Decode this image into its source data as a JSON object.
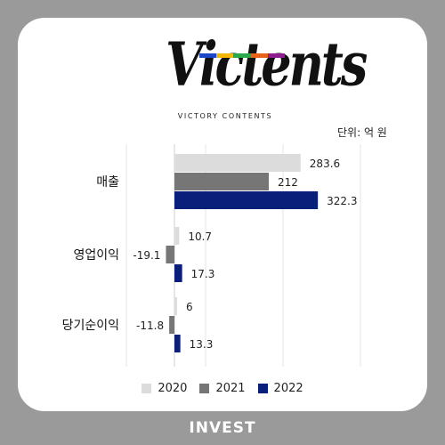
{
  "logo": {
    "word": "Victents",
    "subtitle": "VICTORY CONTENTS",
    "bar_colors": [
      "#1b46c8",
      "#f2b705",
      "#2aa84a",
      "#e8621a",
      "#8e1e8e"
    ]
  },
  "unit_label": "단위: 억 원",
  "chart_data": {
    "type": "bar",
    "orientation": "horizontal",
    "categories": [
      "매출",
      "영업이익",
      "당기순이익"
    ],
    "series": [
      {
        "name": "2020",
        "color": "#dcdcdc",
        "values": [
          283.6,
          10.7,
          6
        ]
      },
      {
        "name": "2021",
        "color": "#767676",
        "values": [
          212,
          -19.1,
          -11.8
        ]
      },
      {
        "name": "2022",
        "color": "#0a1f7a",
        "values": [
          322.3,
          17.3,
          13.3
        ]
      }
    ],
    "value_labels": [
      [
        "283.6",
        "10.7",
        "6"
      ],
      [
        "212",
        "-19.1",
        "-11.8"
      ],
      [
        "322.3",
        "17.3",
        "13.3"
      ]
    ],
    "xlim": [
      -60,
      340
    ],
    "grid": true,
    "legend_position": "bottom"
  },
  "footer": "INVEST"
}
